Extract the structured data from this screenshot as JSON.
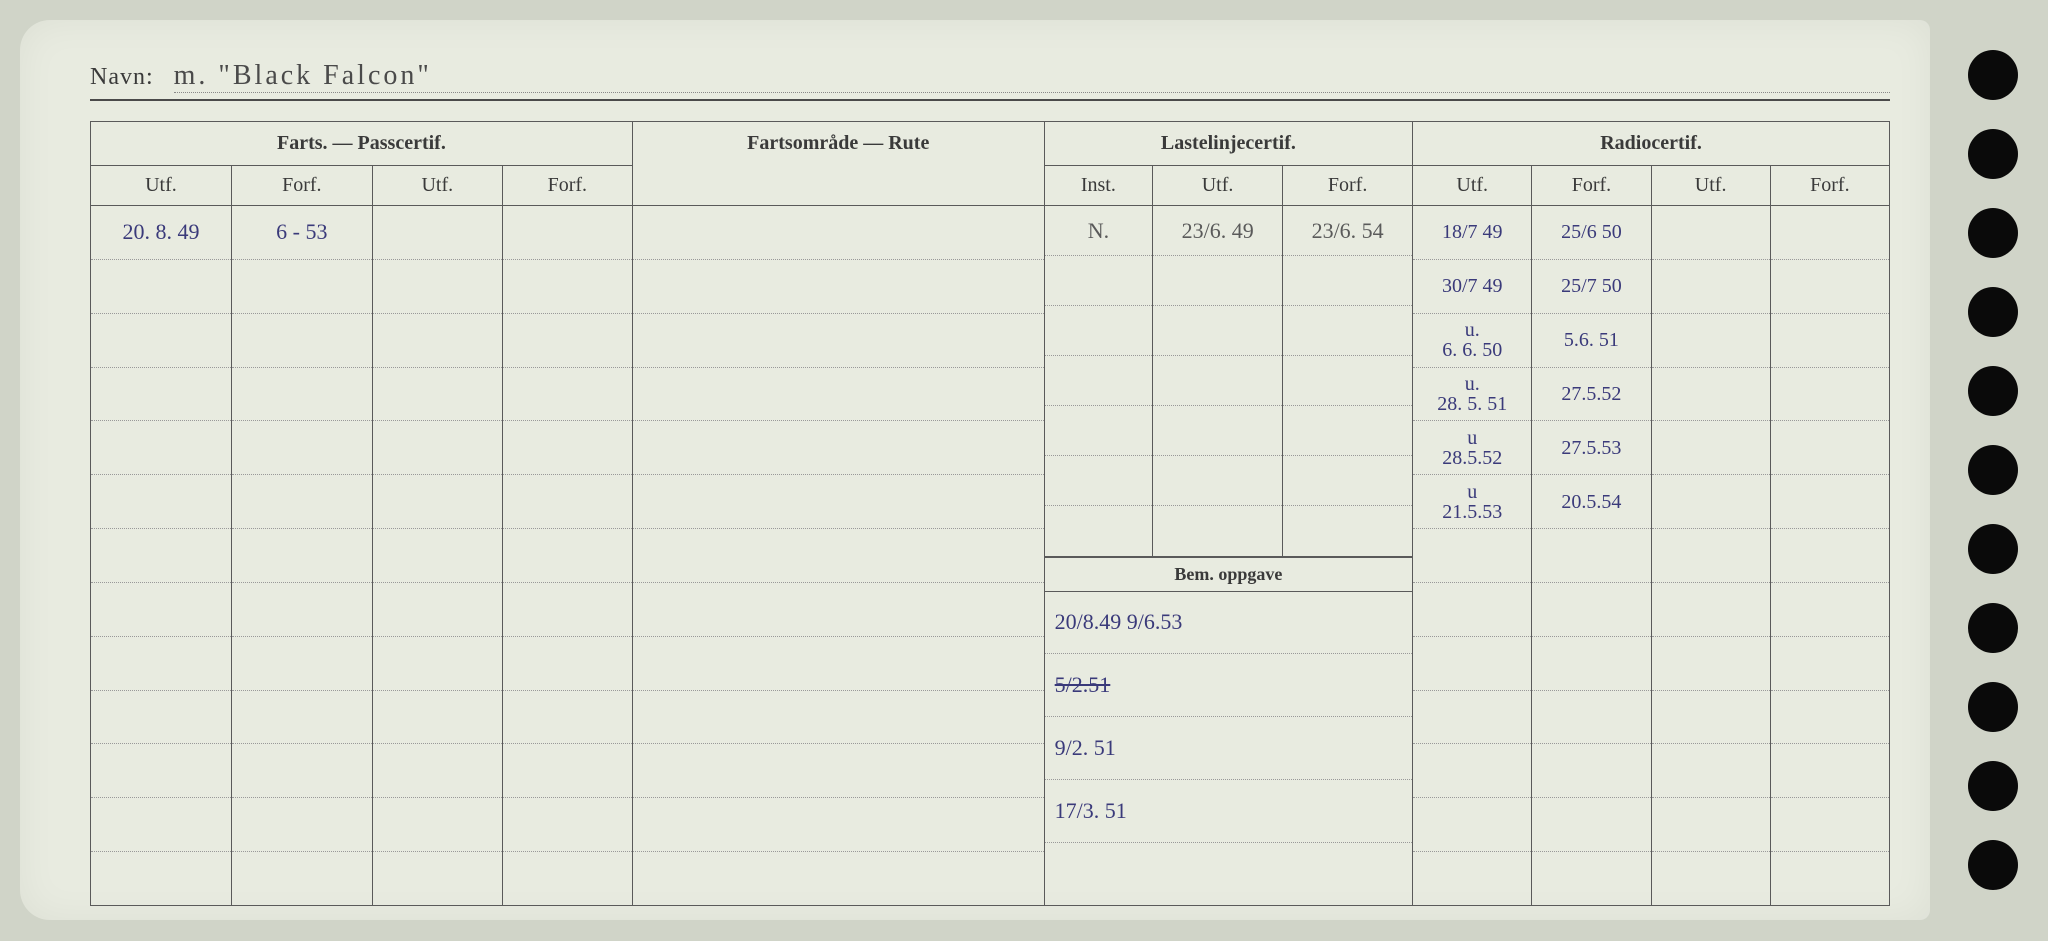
{
  "name_label": "Navn:",
  "name_value": "m. \"Black Falcon\"",
  "headers": {
    "farts": "Farts. — Passcertif.",
    "fartsomrade": "Fartsområde — Rute",
    "lastelinje": "Lastelinjecertif.",
    "radio": "Radiocertif.",
    "utf": "Utf.",
    "forf": "Forf.",
    "inst": "Inst.",
    "bem": "Bem. oppgave"
  },
  "farts_rows": [
    {
      "utf": "20. 8. 49",
      "forf": "6 - 53"
    }
  ],
  "laste_rows": [
    {
      "inst": "N.",
      "utf": "23/6. 49",
      "forf": "23/6. 54"
    }
  ],
  "bem_rows": [
    "20/8.49  9/6.53",
    "5/2.51",
    "9/2. 51",
    "17/3. 51"
  ],
  "radio_rows": [
    {
      "utf": "18/7 49",
      "forf": "25/6 50"
    },
    {
      "utf": "30/7 49",
      "forf": "25/7 50"
    },
    {
      "utf": "u.\n6. 6. 50",
      "forf": "5.6. 51"
    },
    {
      "utf": "u.\n28. 5. 51",
      "forf": "27.5.52"
    },
    {
      "utf": "u\n28.5.52",
      "forf": "27.5.53"
    },
    {
      "utf": "u\n21.5.53",
      "forf": "20.5.54"
    }
  ],
  "colors": {
    "background": "#d0d4c8",
    "card": "#e8ebe0",
    "border": "#5a5a5a",
    "dotted": "#999999",
    "text": "#3a3a3a",
    "ink_blue": "#4a4a8a",
    "ink_gray": "#666666",
    "hole": "#0a0a0a"
  },
  "num_rows": 13,
  "num_holes": 11
}
